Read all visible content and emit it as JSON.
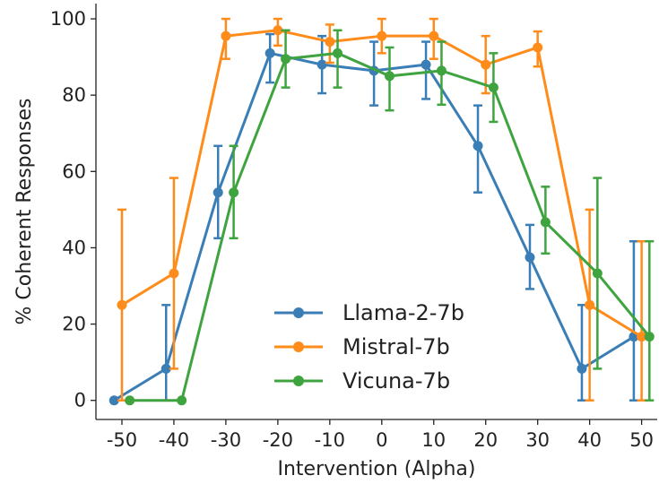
{
  "chart_data": {
    "type": "line",
    "title": "",
    "xlabel": "Intervention (Alpha)",
    "ylabel": "% Coherent Responses",
    "x": [
      -50,
      -40,
      -30,
      -20,
      -10,
      0,
      10,
      20,
      30,
      40,
      50
    ],
    "x_ticks": [
      -50,
      -40,
      -30,
      -20,
      -10,
      0,
      10,
      20,
      30,
      40,
      50
    ],
    "y_ticks": [
      0,
      20,
      40,
      60,
      80,
      100
    ],
    "xlim": [
      -55,
      53
    ],
    "ylim": [
      -5,
      104
    ],
    "grid": false,
    "legend": {
      "position": "bottom-center"
    },
    "error_bars": true,
    "series": [
      {
        "name": "Llama-2-7b",
        "color": "#3a7eb5",
        "x_offset": -1.5,
        "values": [
          0,
          8.3,
          54.5,
          91,
          88,
          86.4,
          88,
          66.7,
          37.5,
          8.3,
          16.7
        ],
        "err_low": [
          0,
          0,
          42.5,
          83.3,
          80.5,
          77.3,
          79,
          54.5,
          29.2,
          0,
          0
        ],
        "err_high": [
          0,
          25,
          66.7,
          96,
          95.5,
          94,
          94,
          77.3,
          46,
          25,
          41.7
        ]
      },
      {
        "name": "Mistral-7b",
        "color": "#ff8c1a",
        "x_offset": 0,
        "values": [
          25,
          33.3,
          95.5,
          97,
          94,
          95.5,
          95.5,
          88,
          92.5,
          25,
          16.7
        ],
        "err_low": [
          0,
          8.3,
          89.5,
          93,
          88.5,
          91,
          89.5,
          80.5,
          87.5,
          0,
          0
        ],
        "err_high": [
          50,
          58.3,
          100,
          100,
          98.5,
          100,
          100,
          95.5,
          96.7,
          50,
          41.7
        ]
      },
      {
        "name": "Vicuna-7b",
        "color": "#3fa43f",
        "x_offset": 1.5,
        "values": [
          0,
          0,
          54.5,
          89.5,
          91,
          85,
          86.4,
          82,
          46.7,
          33.3,
          16.7
        ],
        "err_low": [
          0,
          0,
          42.5,
          82,
          82,
          76,
          77.5,
          73,
          38.5,
          8.3,
          0
        ],
        "err_high": [
          0,
          0,
          66.7,
          97,
          97,
          92.5,
          94,
          91,
          56,
          58.3,
          41.7
        ]
      }
    ]
  }
}
